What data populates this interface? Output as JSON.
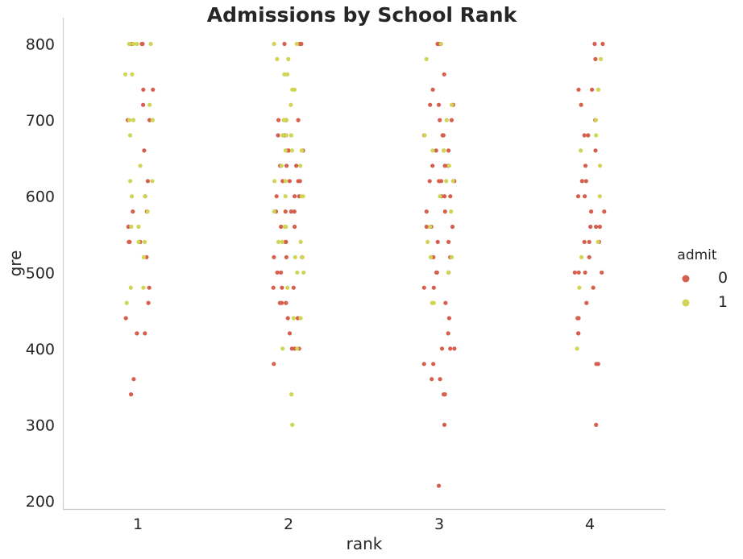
{
  "chart_data": {
    "type": "scatter",
    "subtype": "stripplot",
    "title": "Admissions by School Rank",
    "xlabel": "rank",
    "ylabel": "gre",
    "categories": [
      "1",
      "2",
      "3",
      "4"
    ],
    "y_ticks": [
      200,
      300,
      400,
      500,
      600,
      700,
      800
    ],
    "ylim": [
      190,
      830
    ],
    "grid": false,
    "legend": {
      "title": "admit",
      "placement": "right",
      "entries": [
        {
          "label": "0",
          "color": "#d65f4e"
        },
        {
          "label": "1",
          "color": "#cfd554"
        }
      ]
    },
    "series": [
      {
        "name": "0",
        "color": "#d65f4e",
        "points": [
          {
            "x": "1",
            "y": 800
          },
          {
            "x": "1",
            "y": 800
          },
          {
            "x": "1",
            "y": 800
          },
          {
            "x": "1",
            "y": 740
          },
          {
            "x": "1",
            "y": 740
          },
          {
            "x": "1",
            "y": 720
          },
          {
            "x": "1",
            "y": 700
          },
          {
            "x": "1",
            "y": 700
          },
          {
            "x": "1",
            "y": 660
          },
          {
            "x": "1",
            "y": 620
          },
          {
            "x": "1",
            "y": 600
          },
          {
            "x": "1",
            "y": 580
          },
          {
            "x": "1",
            "y": 580
          },
          {
            "x": "1",
            "y": 560
          },
          {
            "x": "1",
            "y": 540
          },
          {
            "x": "1",
            "y": 540
          },
          {
            "x": "1",
            "y": 540
          },
          {
            "x": "1",
            "y": 520
          },
          {
            "x": "1",
            "y": 480
          },
          {
            "x": "1",
            "y": 460
          },
          {
            "x": "1",
            "y": 440
          },
          {
            "x": "1",
            "y": 420
          },
          {
            "x": "1",
            "y": 420
          },
          {
            "x": "1",
            "y": 360
          },
          {
            "x": "1",
            "y": 340
          },
          {
            "x": "2",
            "y": 800
          },
          {
            "x": "2",
            "y": 800
          },
          {
            "x": "2",
            "y": 800
          },
          {
            "x": "2",
            "y": 700
          },
          {
            "x": "2",
            "y": 700
          },
          {
            "x": "2",
            "y": 700
          },
          {
            "x": "2",
            "y": 700
          },
          {
            "x": "2",
            "y": 680
          },
          {
            "x": "2",
            "y": 680
          },
          {
            "x": "2",
            "y": 680
          },
          {
            "x": "2",
            "y": 660
          },
          {
            "x": "2",
            "y": 660
          },
          {
            "x": "2",
            "y": 660
          },
          {
            "x": "2",
            "y": 640
          },
          {
            "x": "2",
            "y": 640
          },
          {
            "x": "2",
            "y": 640
          },
          {
            "x": "2",
            "y": 620
          },
          {
            "x": "2",
            "y": 620
          },
          {
            "x": "2",
            "y": 620
          },
          {
            "x": "2",
            "y": 620
          },
          {
            "x": "2",
            "y": 600
          },
          {
            "x": "2",
            "y": 600
          },
          {
            "x": "2",
            "y": 600
          },
          {
            "x": "2",
            "y": 580
          },
          {
            "x": "2",
            "y": 580
          },
          {
            "x": "2",
            "y": 580
          },
          {
            "x": "2",
            "y": 580
          },
          {
            "x": "2",
            "y": 560
          },
          {
            "x": "2",
            "y": 560
          },
          {
            "x": "2",
            "y": 560
          },
          {
            "x": "2",
            "y": 540
          },
          {
            "x": "2",
            "y": 540
          },
          {
            "x": "2",
            "y": 520
          },
          {
            "x": "2",
            "y": 520
          },
          {
            "x": "2",
            "y": 520
          },
          {
            "x": "2",
            "y": 500
          },
          {
            "x": "2",
            "y": 500
          },
          {
            "x": "2",
            "y": 480
          },
          {
            "x": "2",
            "y": 480
          },
          {
            "x": "2",
            "y": 480
          },
          {
            "x": "2",
            "y": 460
          },
          {
            "x": "2",
            "y": 460
          },
          {
            "x": "2",
            "y": 460
          },
          {
            "x": "2",
            "y": 440
          },
          {
            "x": "2",
            "y": 440
          },
          {
            "x": "2",
            "y": 420
          },
          {
            "x": "2",
            "y": 400
          },
          {
            "x": "2",
            "y": 400
          },
          {
            "x": "2",
            "y": 400
          },
          {
            "x": "2",
            "y": 380
          },
          {
            "x": "3",
            "y": 800
          },
          {
            "x": "3",
            "y": 800
          },
          {
            "x": "3",
            "y": 800
          },
          {
            "x": "3",
            "y": 760
          },
          {
            "x": "3",
            "y": 740
          },
          {
            "x": "3",
            "y": 720
          },
          {
            "x": "3",
            "y": 720
          },
          {
            "x": "3",
            "y": 720
          },
          {
            "x": "3",
            "y": 700
          },
          {
            "x": "3",
            "y": 700
          },
          {
            "x": "3",
            "y": 680
          },
          {
            "x": "3",
            "y": 680
          },
          {
            "x": "3",
            "y": 680
          },
          {
            "x": "3",
            "y": 660
          },
          {
            "x": "3",
            "y": 660
          },
          {
            "x": "3",
            "y": 660
          },
          {
            "x": "3",
            "y": 640
          },
          {
            "x": "3",
            "y": 640
          },
          {
            "x": "3",
            "y": 640
          },
          {
            "x": "3",
            "y": 620
          },
          {
            "x": "3",
            "y": 620
          },
          {
            "x": "3",
            "y": 620
          },
          {
            "x": "3",
            "y": 620
          },
          {
            "x": "3",
            "y": 600
          },
          {
            "x": "3",
            "y": 600
          },
          {
            "x": "3",
            "y": 600
          },
          {
            "x": "3",
            "y": 580
          },
          {
            "x": "3",
            "y": 580
          },
          {
            "x": "3",
            "y": 560
          },
          {
            "x": "3",
            "y": 560
          },
          {
            "x": "3",
            "y": 560
          },
          {
            "x": "3",
            "y": 540
          },
          {
            "x": "3",
            "y": 540
          },
          {
            "x": "3",
            "y": 520
          },
          {
            "x": "3",
            "y": 520
          },
          {
            "x": "3",
            "y": 520
          },
          {
            "x": "3",
            "y": 500
          },
          {
            "x": "3",
            "y": 500
          },
          {
            "x": "3",
            "y": 500
          },
          {
            "x": "3",
            "y": 480
          },
          {
            "x": "3",
            "y": 480
          },
          {
            "x": "3",
            "y": 460
          },
          {
            "x": "3",
            "y": 440
          },
          {
            "x": "3",
            "y": 420
          },
          {
            "x": "3",
            "y": 400
          },
          {
            "x": "3",
            "y": 400
          },
          {
            "x": "3",
            "y": 400
          },
          {
            "x": "3",
            "y": 380
          },
          {
            "x": "3",
            "y": 380
          },
          {
            "x": "3",
            "y": 360
          },
          {
            "x": "3",
            "y": 360
          },
          {
            "x": "3",
            "y": 340
          },
          {
            "x": "3",
            "y": 340
          },
          {
            "x": "3",
            "y": 300
          },
          {
            "x": "3",
            "y": 220
          },
          {
            "x": "4",
            "y": 800
          },
          {
            "x": "4",
            "y": 800
          },
          {
            "x": "4",
            "y": 780
          },
          {
            "x": "4",
            "y": 740
          },
          {
            "x": "4",
            "y": 740
          },
          {
            "x": "4",
            "y": 720
          },
          {
            "x": "4",
            "y": 700
          },
          {
            "x": "4",
            "y": 680
          },
          {
            "x": "4",
            "y": 680
          },
          {
            "x": "4",
            "y": 660
          },
          {
            "x": "4",
            "y": 640
          },
          {
            "x": "4",
            "y": 620
          },
          {
            "x": "4",
            "y": 620
          },
          {
            "x": "4",
            "y": 600
          },
          {
            "x": "4",
            "y": 600
          },
          {
            "x": "4",
            "y": 580
          },
          {
            "x": "4",
            "y": 580
          },
          {
            "x": "4",
            "y": 560
          },
          {
            "x": "4",
            "y": 560
          },
          {
            "x": "4",
            "y": 560
          },
          {
            "x": "4",
            "y": 540
          },
          {
            "x": "4",
            "y": 540
          },
          {
            "x": "4",
            "y": 540
          },
          {
            "x": "4",
            "y": 520
          },
          {
            "x": "4",
            "y": 500
          },
          {
            "x": "4",
            "y": 500
          },
          {
            "x": "4",
            "y": 500
          },
          {
            "x": "4",
            "y": 500
          },
          {
            "x": "4",
            "y": 480
          },
          {
            "x": "4",
            "y": 460
          },
          {
            "x": "4",
            "y": 440
          },
          {
            "x": "4",
            "y": 440
          },
          {
            "x": "4",
            "y": 420
          },
          {
            "x": "4",
            "y": 420
          },
          {
            "x": "4",
            "y": 380
          },
          {
            "x": "4",
            "y": 380
          },
          {
            "x": "4",
            "y": 300
          }
        ]
      },
      {
        "name": "1",
        "color": "#cfd554",
        "points": [
          {
            "x": "1",
            "y": 800
          },
          {
            "x": "1",
            "y": 800
          },
          {
            "x": "1",
            "y": 800
          },
          {
            "x": "1",
            "y": 800
          },
          {
            "x": "1",
            "y": 760
          },
          {
            "x": "1",
            "y": 760
          },
          {
            "x": "1",
            "y": 720
          },
          {
            "x": "1",
            "y": 700
          },
          {
            "x": "1",
            "y": 700
          },
          {
            "x": "1",
            "y": 700
          },
          {
            "x": "1",
            "y": 680
          },
          {
            "x": "1",
            "y": 640
          },
          {
            "x": "1",
            "y": 620
          },
          {
            "x": "1",
            "y": 620
          },
          {
            "x": "1",
            "y": 600
          },
          {
            "x": "1",
            "y": 600
          },
          {
            "x": "1",
            "y": 580
          },
          {
            "x": "1",
            "y": 560
          },
          {
            "x": "1",
            "y": 560
          },
          {
            "x": "1",
            "y": 540
          },
          {
            "x": "1",
            "y": 540
          },
          {
            "x": "1",
            "y": 520
          },
          {
            "x": "1",
            "y": 480
          },
          {
            "x": "1",
            "y": 480
          },
          {
            "x": "1",
            "y": 460
          },
          {
            "x": "2",
            "y": 800
          },
          {
            "x": "2",
            "y": 800
          },
          {
            "x": "2",
            "y": 780
          },
          {
            "x": "2",
            "y": 780
          },
          {
            "x": "2",
            "y": 760
          },
          {
            "x": "2",
            "y": 760
          },
          {
            "x": "2",
            "y": 740
          },
          {
            "x": "2",
            "y": 740
          },
          {
            "x": "2",
            "y": 720
          },
          {
            "x": "2",
            "y": 700
          },
          {
            "x": "2",
            "y": 700
          },
          {
            "x": "2",
            "y": 680
          },
          {
            "x": "2",
            "y": 680
          },
          {
            "x": "2",
            "y": 680
          },
          {
            "x": "2",
            "y": 660
          },
          {
            "x": "2",
            "y": 660
          },
          {
            "x": "2",
            "y": 660
          },
          {
            "x": "2",
            "y": 660
          },
          {
            "x": "2",
            "y": 640
          },
          {
            "x": "2",
            "y": 640
          },
          {
            "x": "2",
            "y": 620
          },
          {
            "x": "2",
            "y": 620
          },
          {
            "x": "2",
            "y": 600
          },
          {
            "x": "2",
            "y": 600
          },
          {
            "x": "2",
            "y": 600
          },
          {
            "x": "2",
            "y": 580
          },
          {
            "x": "2",
            "y": 560
          },
          {
            "x": "2",
            "y": 560
          },
          {
            "x": "2",
            "y": 540
          },
          {
            "x": "2",
            "y": 540
          },
          {
            "x": "2",
            "y": 540
          },
          {
            "x": "2",
            "y": 520
          },
          {
            "x": "2",
            "y": 520
          },
          {
            "x": "2",
            "y": 500
          },
          {
            "x": "2",
            "y": 500
          },
          {
            "x": "2",
            "y": 480
          },
          {
            "x": "2",
            "y": 440
          },
          {
            "x": "2",
            "y": 440
          },
          {
            "x": "2",
            "y": 400
          },
          {
            "x": "2",
            "y": 400
          },
          {
            "x": "2",
            "y": 340
          },
          {
            "x": "2",
            "y": 300
          },
          {
            "x": "3",
            "y": 800
          },
          {
            "x": "3",
            "y": 780
          },
          {
            "x": "3",
            "y": 720
          },
          {
            "x": "3",
            "y": 700
          },
          {
            "x": "3",
            "y": 680
          },
          {
            "x": "3",
            "y": 660
          },
          {
            "x": "3",
            "y": 660
          },
          {
            "x": "3",
            "y": 640
          },
          {
            "x": "3",
            "y": 620
          },
          {
            "x": "3",
            "y": 620
          },
          {
            "x": "3",
            "y": 600
          },
          {
            "x": "3",
            "y": 580
          },
          {
            "x": "3",
            "y": 560
          },
          {
            "x": "3",
            "y": 540
          },
          {
            "x": "3",
            "y": 520
          },
          {
            "x": "3",
            "y": 520
          },
          {
            "x": "3",
            "y": 500
          },
          {
            "x": "3",
            "y": 460
          },
          {
            "x": "3",
            "y": 460
          },
          {
            "x": "4",
            "y": 780
          },
          {
            "x": "4",
            "y": 740
          },
          {
            "x": "4",
            "y": 700
          },
          {
            "x": "4",
            "y": 680
          },
          {
            "x": "4",
            "y": 660
          },
          {
            "x": "4",
            "y": 640
          },
          {
            "x": "4",
            "y": 600
          },
          {
            "x": "4",
            "y": 540
          },
          {
            "x": "4",
            "y": 520
          },
          {
            "x": "4",
            "y": 480
          },
          {
            "x": "4",
            "y": 400
          }
        ]
      }
    ]
  }
}
